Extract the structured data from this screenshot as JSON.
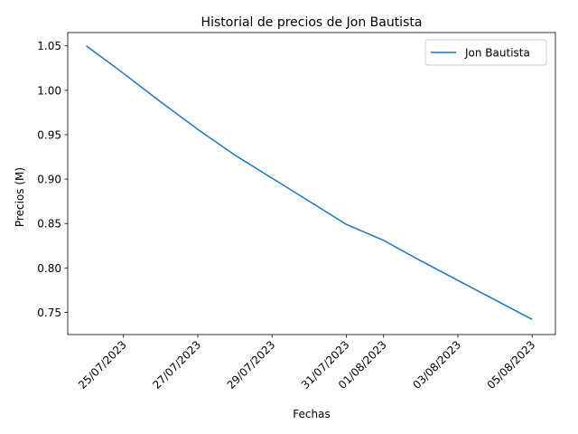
{
  "chart_data": {
    "type": "line",
    "title": "Historial de precios de Jon Bautista",
    "xlabel": "Fechas",
    "ylabel": "Precios (M)",
    "x_tick_labels": [
      "25/07/2023",
      "27/07/2023",
      "29/07/2023",
      "31/07/2023",
      "01/08/2023",
      "03/08/2023",
      "05/08/2023"
    ],
    "x_ticks": [
      "2023-07-25",
      "2023-07-27",
      "2023-07-29",
      "2023-07-31",
      "2023-08-01",
      "2023-08-03",
      "2023-08-05"
    ],
    "xlim": [
      "2023-07-23T12:00",
      "2023-08-05T15:00"
    ],
    "y_ticks": [
      0.75,
      0.8,
      0.85,
      0.9,
      0.95,
      1.0,
      1.05
    ],
    "y_tick_labels": [
      "0.75",
      "0.80",
      "0.85",
      "0.90",
      "0.95",
      "1.00",
      "1.05"
    ],
    "ylim": [
      0.725,
      1.065
    ],
    "grid": false,
    "legend": "top-right",
    "series": [
      {
        "name": "Jon Bautista",
        "color": "#1f77b4",
        "x": [
          "2023-07-24",
          "2023-07-25",
          "2023-07-26",
          "2023-07-27",
          "2023-07-28",
          "2023-07-29",
          "2023-07-30",
          "2023-07-31",
          "2023-08-01",
          "2023-08-02",
          "2023-08-03",
          "2023-08-04",
          "2023-08-05"
        ],
        "values": [
          1.05,
          1.019,
          0.987,
          0.956,
          0.927,
          0.901,
          0.875,
          0.849,
          0.831,
          0.808,
          0.786,
          0.764,
          0.742
        ]
      }
    ]
  }
}
